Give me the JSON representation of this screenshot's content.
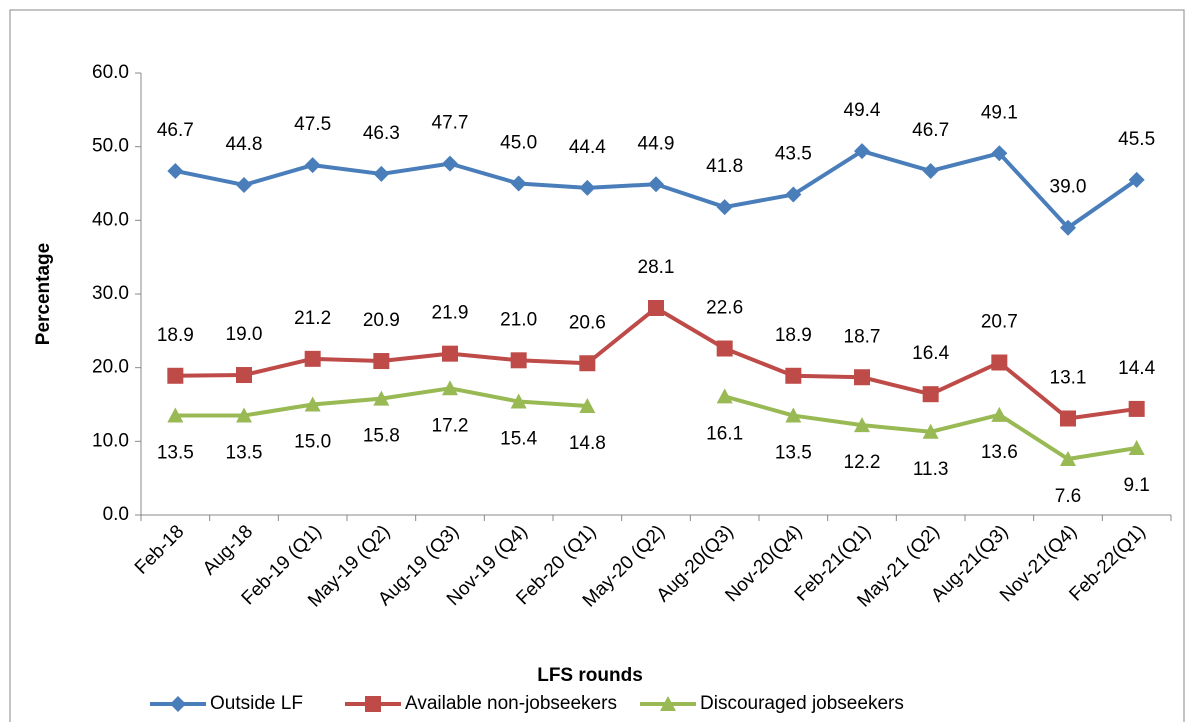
{
  "chart_data": {
    "type": "line",
    "x_label": "LFS rounds",
    "y_label": "Percentage",
    "categories": [
      "Feb-18",
      "Aug-18",
      "Feb-19  (Q1)",
      "May-19 (Q2)",
      "Aug-19 (Q3)",
      "Nov-19 (Q4)",
      "Feb-20 (Q1)",
      "May-20 (Q2)",
      "Aug-20(Q3)",
      "Nov-20(Q4)",
      "Feb-21(Q1)",
      "May-21 (Q2)",
      "Aug-21(Q3)",
      "Nov-21(Q4)",
      "Feb-22(Q1)"
    ],
    "series": [
      {
        "name": "Outside LF",
        "color": "#4a7ebb",
        "marker": "diamond",
        "label_position": "above",
        "values": [
          46.7,
          44.8,
          47.5,
          46.3,
          47.7,
          45,
          44.4,
          44.9,
          41.8,
          43.5,
          49.4,
          46.7,
          49.1,
          39,
          45.5
        ],
        "value_labels": [
          "46.7",
          "44.8",
          "47.5",
          "46.3",
          "47.7",
          "45.0",
          "44.4",
          "44.9",
          "41.8",
          "43.5",
          "49.4",
          "46.7",
          "49.1",
          "39.0",
          "45.5"
        ]
      },
      {
        "name": "Available non-jobseekers",
        "color": "#be4b48",
        "marker": "square",
        "label_position": "above",
        "values": [
          18.9,
          19,
          21.2,
          20.9,
          21.9,
          21,
          20.6,
          28.1,
          22.6,
          18.9,
          18.7,
          16.4,
          20.7,
          13.1,
          14.4
        ],
        "value_labels": [
          "18.9",
          "19.0",
          "21.2",
          "20.9",
          "21.9",
          "21.0",
          "20.6",
          "28.1",
          "22.6",
          "18.9",
          "18.7",
          "16.4",
          "20.7",
          "13.1",
          "14.4"
        ]
      },
      {
        "name": "Discouraged jobseekers",
        "color": "#98b954",
        "marker": "triangle",
        "label_position": "below",
        "values": [
          13.5,
          13.5,
          15,
          15.8,
          17.2,
          15.4,
          14.8,
          null,
          16.1,
          13.5,
          12.2,
          11.3,
          13.6,
          7.6,
          9.1
        ],
        "value_labels": [
          "13.5",
          "13.5",
          "15.0",
          "15.8",
          "17.2",
          "15.4",
          "14.8",
          null,
          "16.1",
          "13.5",
          "12.2",
          "11.3",
          "13.6",
          "7.6",
          "9.1"
        ]
      }
    ],
    "ylim": [
      0,
      60
    ],
    "yticks": [
      {
        "value": 0,
        "label": "0.0"
      },
      {
        "value": 10,
        "label": "10.0"
      },
      {
        "value": 20,
        "label": "20.0"
      },
      {
        "value": 30,
        "label": "30.0"
      },
      {
        "value": 40,
        "label": "40.0"
      },
      {
        "value": 50,
        "label": "50.0"
      },
      {
        "value": 60,
        "label": "60.0"
      }
    ],
    "grid": false,
    "legend": "bottom"
  }
}
